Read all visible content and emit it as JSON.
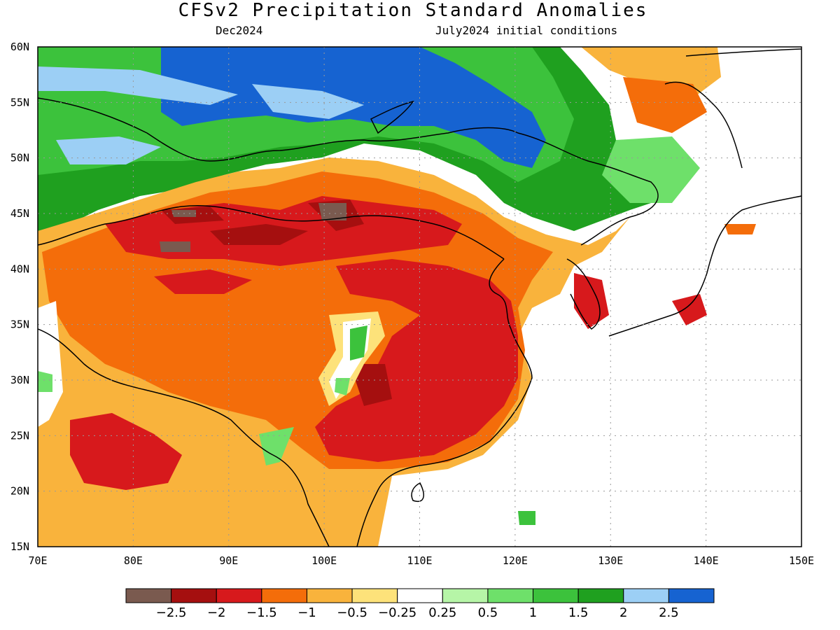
{
  "header": {
    "title": "CFSv2 Precipitation Standard Anomalies",
    "valid_month": "Dec2024",
    "init": "July2024 initial conditions"
  },
  "axes": {
    "lon_ticks": [
      "70E",
      "80E",
      "90E",
      "100E",
      "110E",
      "120E",
      "130E",
      "140E",
      "150E"
    ],
    "lat_ticks": [
      "60N",
      "55N",
      "50N",
      "45N",
      "40N",
      "35N",
      "30N",
      "25N",
      "20N",
      "15N"
    ],
    "lon_range": [
      70,
      150
    ],
    "lat_range": [
      15,
      60
    ],
    "grid": "dotted"
  },
  "colorbar": {
    "colors": [
      "#7a5a4f",
      "#a50f0f",
      "#d7191c",
      "#f46d0a",
      "#f9b33c",
      "#fde27a",
      "#ffffff",
      "#b6f5a7",
      "#6ee06a",
      "#3cc23c",
      "#1fa01f",
      "#9ccff5",
      "#1663d1"
    ],
    "labels": [
      "−2.5",
      "−2",
      "−1.5",
      "−1",
      "−0.5",
      "−0.25",
      "0.25",
      "0.5",
      "1",
      "1.5",
      "2",
      "2.5"
    ]
  }
}
